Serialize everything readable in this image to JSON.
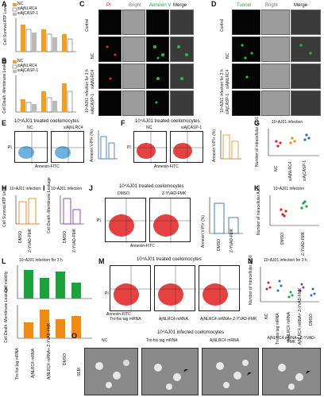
{
  "panels": {
    "A": {
      "label": "A",
      "ylabel": "Cell Survival ATP Level",
      "legend": [
        "NC",
        "siAjNLRC4",
        "siAjCASP-1"
      ]
    },
    "B": {
      "label": "B",
      "ylabel": "Cell Death -Membrane Leakage",
      "legend": [
        "NC",
        "siAjNLRC4",
        "siAjCASP-1"
      ]
    },
    "C": {
      "label": "C",
      "columns": [
        "PI",
        "Bright",
        "Annexin V",
        "Merge"
      ],
      "rows": [
        "Control",
        "NC",
        "siAjNLRC4",
        "siAjCASP-1"
      ],
      "side_label": "10⁴AJ01 infection for 3 h"
    },
    "D": {
      "label": "D",
      "columns": [
        "Tunnel",
        "Bright",
        "Merge"
      ],
      "rows": [
        "Control",
        "NC",
        "siAjNLRC4",
        "siAjCASP-1"
      ],
      "side_label": "10⁴AJ01 infection for 3 h"
    },
    "E": {
      "label": "E",
      "title": "10⁴AJ01 treated coelomocytes",
      "plots": [
        "NC",
        "siAjNLRC4"
      ],
      "xlabel": "Annexin-FITC",
      "ylabel": "PI",
      "bar_ylabel": "Annexin V-PI+ (%)"
    },
    "F": {
      "label": "F",
      "title": "10⁴AJ01 treated coelomocytes",
      "plots": [
        "NC",
        "siAjCASP-1"
      ],
      "xlabel": "Annexin-FITC",
      "ylabel": "PI",
      "bar_ylabel": "Annexin V-PI+ (%)"
    },
    "G": {
      "label": "G",
      "title": "10⁴AJ01 infection",
      "ylabel": "Number of intracellular AJ01",
      "xticks": [
        "NC",
        "siAjNLRC4",
        "siAjCASP-1"
      ]
    },
    "H": {
      "label": "H",
      "title": "10⁴AJ01 infection",
      "ylabel": "Cell Survival ATP Level",
      "xticks": [
        "DMSO",
        "Z-YVAD-FMK"
      ]
    },
    "I": {
      "label": "I",
      "title": "10⁴AJ01 infection",
      "ylabel": "Cell Death -Membrane Leakage",
      "xticks": [
        "DMSO",
        "Z-YVAD-FMK"
      ]
    },
    "J": {
      "label": "J",
      "title": "10⁴AJ01 treated coelomocytes",
      "plots": [
        "DMSO",
        "Z-YVAD-FMK"
      ],
      "xlabel": "Annexin-FITC",
      "ylabel": "PI",
      "bar_ylabel": "Annexin V-PI+ (%)"
    },
    "K": {
      "label": "K",
      "title": "10⁴AJ01 infection",
      "ylabel": "Number of intracellular AJ01",
      "xticks": [
        "DMSO",
        "Z-YVAD-FMK"
      ]
    },
    "L": {
      "label": "L",
      "title": "10⁴AJ01 infection for 3 h",
      "ylabel_top": "Cell viability",
      "ylabel_bottom": "Cell Death -Membrane Leakage",
      "xticks": [
        "Trx-his tag mRNA",
        "AjNLRC4 mRNA",
        "AjNLRC4 mRNA+ Z-YVAD-FMK",
        "DMSO"
      ]
    },
    "M": {
      "label": "M",
      "title": "10⁴AJ01 treated coelomocytes",
      "plots": [
        "Trx-his tag mRNA",
        "AjNLRC4 mRNA",
        "AjNLRC4 mRNA+ Z-YVAD-FMK"
      ],
      "xlabel": "Annexin-FITC",
      "ylabel": "PI"
    },
    "N": {
      "label": "N",
      "title": "10⁴AJ01 infection for 3 h",
      "ylabel": "Number of intracellular AJ01",
      "xticks": [
        "NC",
        "Trx-his tag mRNA",
        "AjNLRC4 mRNA",
        "AjNLRC4 mRNA+ Z-YVAD-FMK",
        "DMSO"
      ]
    },
    "O": {
      "label": "O",
      "title": "10⁴AJ01 infected coelomocytes",
      "columns": [
        "NC",
        "Trx-his tag mRNA",
        "AjNLRC4 mRNA",
        "AjNLRC4 mRNA+ Z-YVAD-FMK"
      ],
      "side_label": "SEM"
    }
  },
  "colors": {
    "nc": "#f0a020",
    "red_flow": "#e02020",
    "blue_flow": "#4a9fd8",
    "green": "#1aa33a",
    "orange": "#f08a10",
    "blue_bar": "#2a6fb0"
  }
}
